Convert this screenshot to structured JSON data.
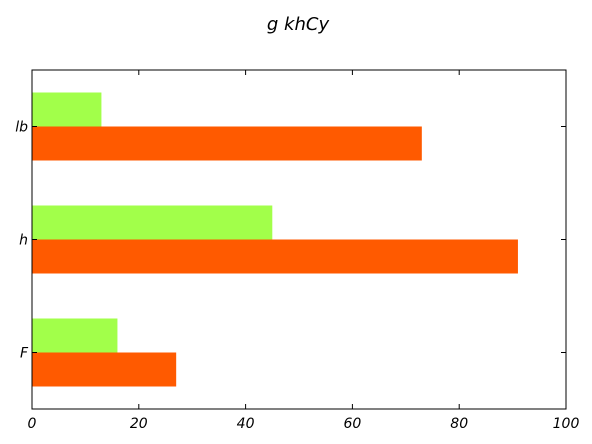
{
  "chart_data": {
    "type": "bar",
    "orientation": "horizontal",
    "title": "g khCy",
    "xlabel": "",
    "ylabel": "",
    "categories": [
      "F",
      "h",
      "lb"
    ],
    "series": [
      {
        "values": [
          27,
          91,
          73
        ],
        "color": "#ff5a00"
      },
      {
        "values": [
          16,
          45,
          13
        ],
        "color": "#a2ff4a"
      }
    ],
    "xlim": [
      0,
      100
    ],
    "xticks": [
      0,
      20,
      40,
      60,
      80,
      100
    ],
    "grid": false,
    "legend": "none"
  }
}
